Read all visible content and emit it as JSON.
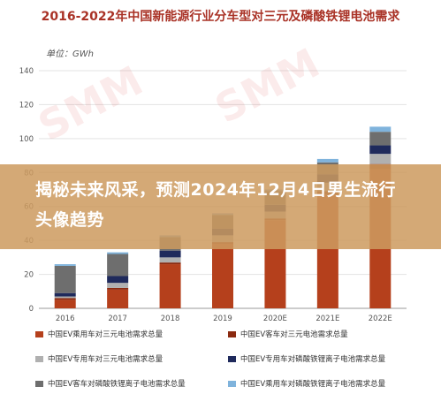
{
  "chart_data": {
    "type": "bar",
    "stacked": true,
    "title": "2016-2022年中国新能源行业分车型对三元及磷酸铁锂电池需求",
    "unit_label": "单位：GWh",
    "categories": [
      "2016",
      "2017",
      "2018",
      "2019",
      "2020E",
      "2021E",
      "2022E"
    ],
    "ylim": [
      0,
      140
    ],
    "yticks": [
      0,
      20,
      40,
      60,
      80,
      100,
      120,
      140
    ],
    "grid": true,
    "legend_position": "bottom",
    "series": [
      {
        "name": "中国EV乘用车对三元电池需求总量",
        "color": "#b5401c",
        "values": [
          5,
          11,
          26,
          38,
          52,
          67,
          82
        ]
      },
      {
        "name": "中国EV客车对三元电池需求总量",
        "color": "#8b2a10",
        "values": [
          1,
          1,
          1,
          1,
          1,
          2,
          3
        ]
      },
      {
        "name": "中国EV专用车对三元电池需求总量",
        "color": "#b0b0b0",
        "values": [
          1,
          3,
          3,
          4,
          4,
          5,
          6
        ]
      },
      {
        "name": "中国EV专用车对磷酸铁锂离子电池需求总量",
        "color": "#1f2a5c",
        "values": [
          2,
          4,
          4,
          4,
          4,
          5,
          5
        ]
      },
      {
        "name": "中国EV客车对磷酸铁锂离子电池需求总量",
        "color": "#6e6e6e",
        "values": [
          16,
          13,
          8,
          8,
          8,
          7,
          8
        ]
      },
      {
        "name": "中国EV乘用车对磷酸铁锂离子电池需求总量",
        "color": "#7fb3dc",
        "values": [
          1,
          1,
          1,
          1,
          1,
          2,
          3
        ]
      }
    ]
  },
  "banner": {
    "text": "揭秘未来风采，预测2024年12月4日男生流行头像趋势"
  },
  "watermark": {
    "text": "SMM"
  }
}
